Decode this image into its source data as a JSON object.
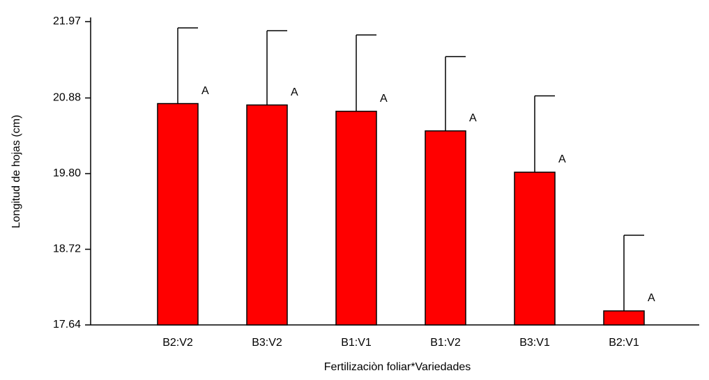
{
  "chart_data": {
    "type": "bar",
    "x_label": "Fertilizaciòn foliar*Variedades",
    "y_label": "Longitud de hojas (cm)",
    "categories": [
      "B2:V2",
      "B3:V2",
      "B1:V1",
      "B1:V2",
      "B3:V1",
      "B2:V1"
    ],
    "values": [
      20.8,
      20.78,
      20.69,
      20.41,
      19.82,
      17.84
    ],
    "errors": [
      1.08,
      1.06,
      1.09,
      1.06,
      1.09,
      1.08
    ],
    "annotations": [
      "A",
      "A",
      "A",
      "A",
      "A",
      "A"
    ],
    "color": "#ff0000",
    "ylim": [
      17.64,
      21.97
    ],
    "yticks": [
      17.64,
      18.72,
      {
        "value": 19.8,
        "label": "19.80"
      },
      20.88,
      21.97
    ]
  }
}
